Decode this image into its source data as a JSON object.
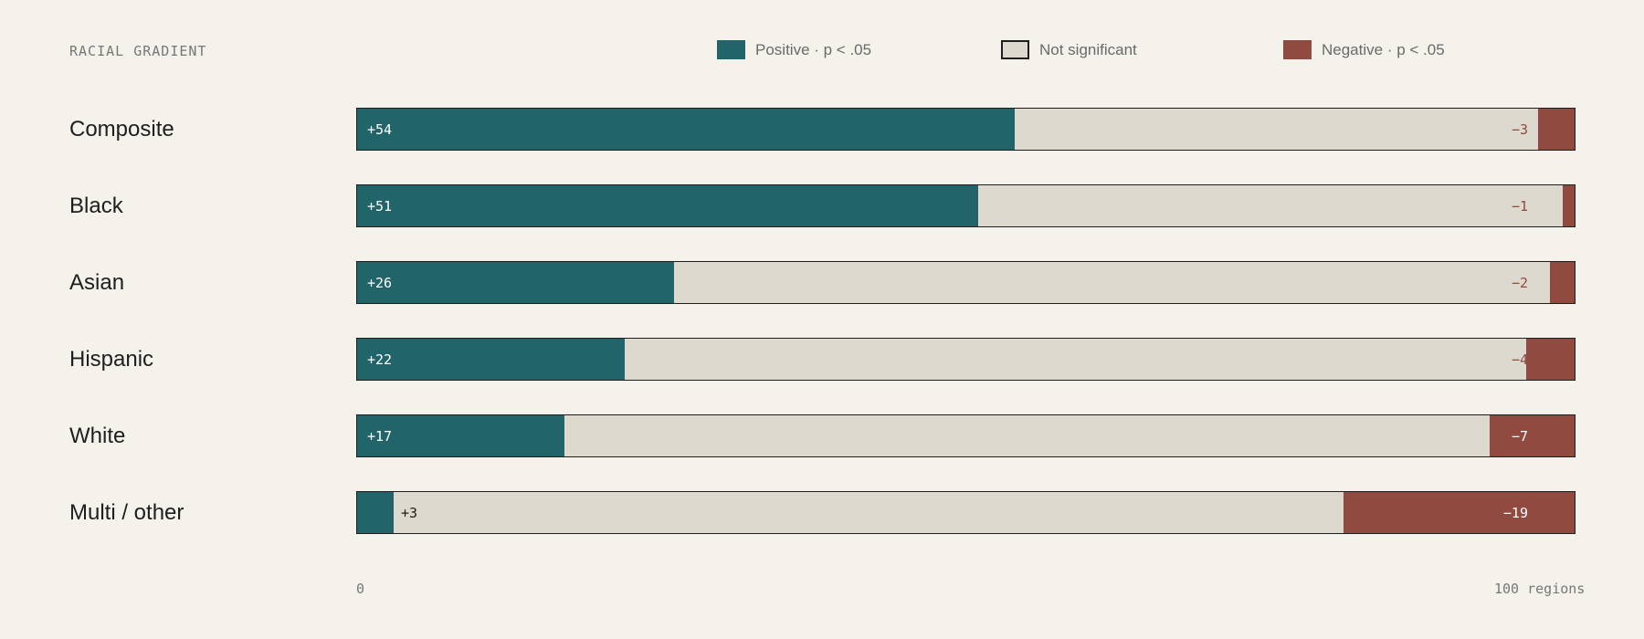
{
  "panel_title": "RACIAL GRADIENT",
  "legend": [
    {
      "label": "Positive · p < .05",
      "color": "#21646a"
    },
    {
      "label": "Not significant",
      "color": "#ddd9ce"
    },
    {
      "label": "Negative · p < .05",
      "color": "#914a40"
    }
  ],
  "axis": {
    "min_label": "0",
    "max_label": "100 regions"
  },
  "chart_data": {
    "type": "bar",
    "orientation": "horizontal-stacked",
    "title": "RACIAL GRADIENT",
    "total": 100,
    "categories": [
      "Composite",
      "Black",
      "Asian",
      "Hispanic",
      "White",
      "Multi / other"
    ],
    "series": [
      {
        "name": "Positive · p < .05",
        "values": [
          54,
          51,
          26,
          22,
          17,
          3
        ]
      },
      {
        "name": "Not significant",
        "values": [
          43,
          48,
          72,
          74,
          76,
          78
        ]
      },
      {
        "name": "Negative · p < .05",
        "values": [
          3,
          1,
          2,
          4,
          7,
          19
        ]
      }
    ],
    "positive_labels": [
      "+54",
      "+51",
      "+26",
      "+22",
      "+17",
      "+3"
    ],
    "negative_labels": [
      "−3",
      "−1",
      "−2",
      "−4",
      "−7",
      "−19"
    ],
    "xlim": [
      0,
      100
    ],
    "xlabel_min": "0",
    "xlabel_max": "100 regions",
    "legend_position": "top"
  }
}
